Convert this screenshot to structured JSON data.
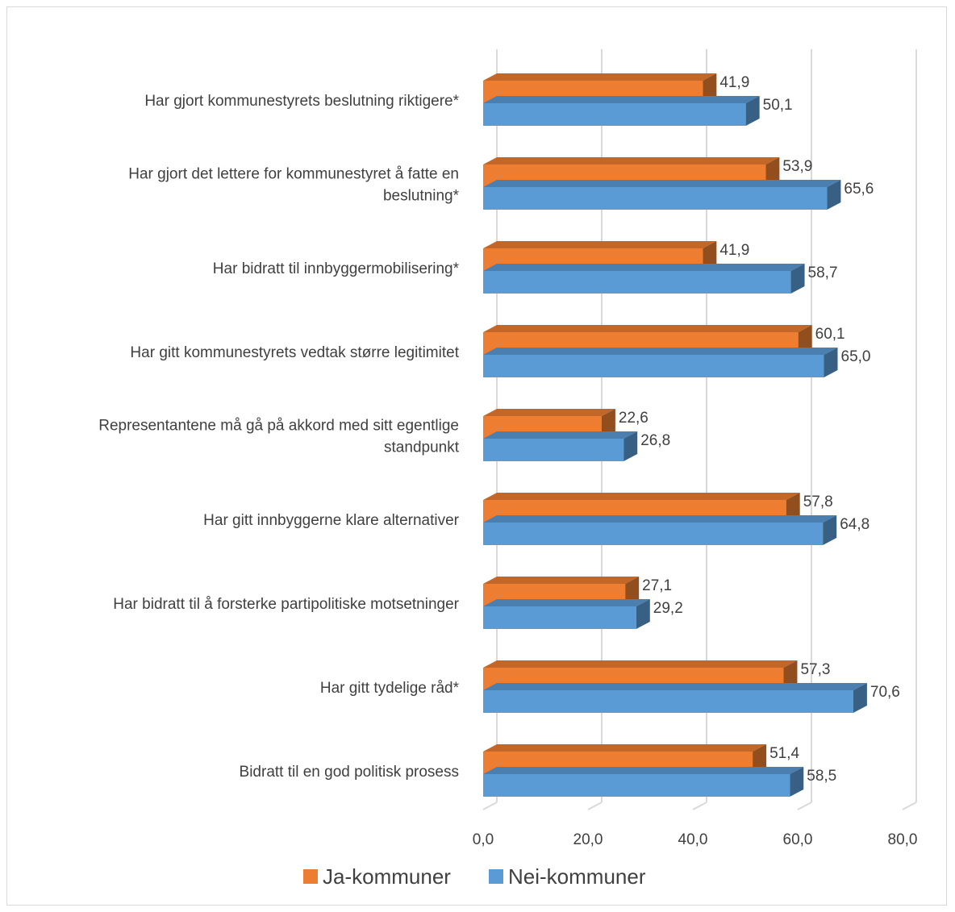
{
  "chart_data": {
    "type": "bar",
    "orientation": "horizontal",
    "style": "3d",
    "categories": [
      "Har gjort kommunestyrets beslutning riktigere*",
      "Har gjort det lettere for kommunestyret å fatte en beslutning*",
      "Har bidratt til innbyggermobilisering*",
      "Har gitt kommunestyrets vedtak større legitimitet",
      "Representantene må gå på akkord med sitt egentlige standpunkt",
      "Har gitt innbyggerne klare alternativer",
      "Har bidratt til å forsterke partipolitiske motsetninger",
      "Har gitt tydelige råd*",
      "Bidratt til en god politisk prosess"
    ],
    "category_lines": [
      [
        "Har gjort kommunestyrets beslutning riktigere*"
      ],
      [
        "Har gjort det lettere for kommunestyret å fatte en",
        "beslutning*"
      ],
      [
        "Har bidratt til innbyggermobilisering*"
      ],
      [
        "Har gitt kommunestyrets vedtak større legitimitet"
      ],
      [
        "Representantene må gå på akkord med sitt egentlige",
        "standpunkt"
      ],
      [
        "Har gitt innbyggerne klare alternativer"
      ],
      [
        "Har bidratt til å forsterke partipolitiske motsetninger"
      ],
      [
        "Har gitt tydelige råd*"
      ],
      [
        "Bidratt til en god politisk prosess"
      ]
    ],
    "series": [
      {
        "name": "Ja-kommuner",
        "color": "#ED7D31",
        "values": [
          41.9,
          53.9,
          41.9,
          60.1,
          22.6,
          57.8,
          27.1,
          57.3,
          51.4
        ],
        "value_labels": [
          "41,9",
          "53,9",
          "41,9",
          "60,1",
          "22,6",
          "57,8",
          "27,1",
          "57,3",
          "51,4"
        ]
      },
      {
        "name": "Nei-kommuner",
        "color": "#5B9BD5",
        "values": [
          50.1,
          65.6,
          58.7,
          65.0,
          26.8,
          64.8,
          29.2,
          70.6,
          58.5
        ],
        "value_labels": [
          "50,1",
          "65,6",
          "58,7",
          "65,0",
          "26,8",
          "64,8",
          "29,2",
          "70,6",
          "58,5"
        ]
      }
    ],
    "x_ticks": [
      0,
      20,
      40,
      60,
      80
    ],
    "x_tick_labels": [
      "0,0",
      "20,0",
      "40,0",
      "60,0",
      "80,0"
    ],
    "xlim": [
      0,
      80
    ],
    "title": "",
    "xlabel": "",
    "ylabel": "",
    "grid": true,
    "legend_position": "bottom"
  }
}
